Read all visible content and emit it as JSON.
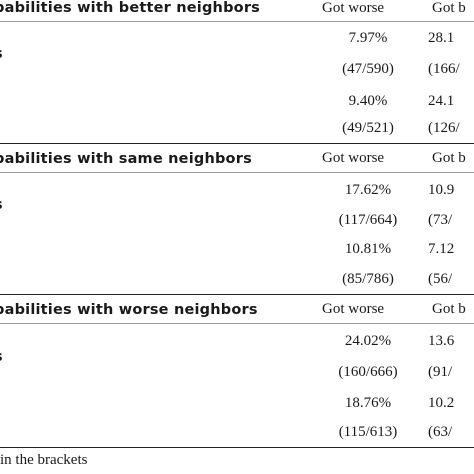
{
  "sections": [
    {
      "title": "babilities with better neighbors",
      "col_worse": "Got worse",
      "col_better": "Got b",
      "row_label": "s",
      "rows": [
        {
          "c1": "7.97%",
          "c2": "28.1"
        },
        {
          "c1": "(47/590)",
          "c2": "(166/"
        },
        {
          "c1": "9.40%",
          "c2": "24.1"
        },
        {
          "c1": "(49/521)",
          "c2": "(126/"
        }
      ]
    },
    {
      "title": "babilities with same neighbors",
      "col_worse": "Got worse",
      "col_better": "Got b",
      "row_label": "s",
      "rows": [
        {
          "c1": "17.62%",
          "c2": "10.9"
        },
        {
          "c1": "(117/664)",
          "c2": "(73/"
        },
        {
          "c1": "10.81%",
          "c2": "7.12"
        },
        {
          "c1": "(85/786)",
          "c2": "(56/"
        }
      ]
    },
    {
      "title": "babilities with worse neighbors",
      "col_worse": "Got worse",
      "col_better": "Got b",
      "row_label": "s",
      "rows": [
        {
          "c1": "24.02%",
          "c2": "13.6"
        },
        {
          "c1": "(160/666)",
          "c2": "(91/"
        },
        {
          "c1": "18.76%",
          "c2": "10.2"
        },
        {
          "c1": "(115/613)",
          "c2": "(63/"
        }
      ]
    }
  ],
  "footnote": "in the brackets"
}
